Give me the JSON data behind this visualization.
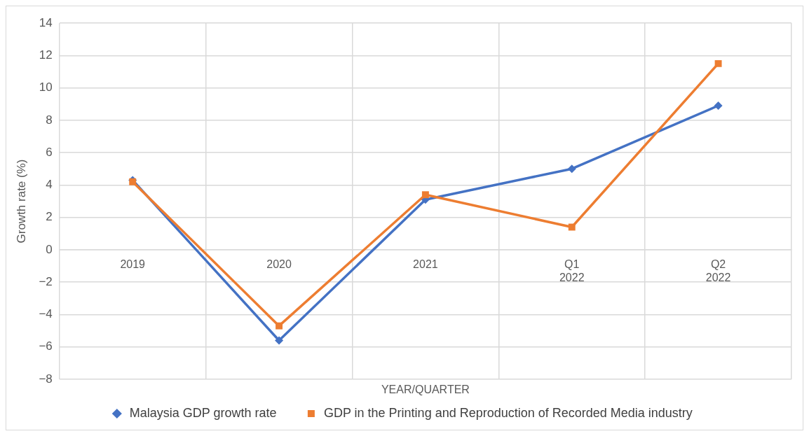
{
  "chart_data": {
    "type": "line",
    "xlabel": "YEAR/QUARTER",
    "ylabel": "Growth rate (%)",
    "categories": [
      "2019",
      "2020",
      "2021",
      "Q1 2022",
      "Q2 2022"
    ],
    "series": [
      {
        "name": "Malaysia GDP growth rate",
        "color": "#4472c4",
        "marker": "diamond",
        "values": [
          4.3,
          -5.6,
          3.1,
          5.0,
          8.9
        ]
      },
      {
        "name": "GDP in the Printing and Reproduction of Recorded Media industry",
        "color": "#ed7d31",
        "marker": "square",
        "values": [
          4.2,
          -4.7,
          3.4,
          1.4,
          11.5
        ]
      }
    ],
    "ylim": [
      -8,
      14
    ],
    "yticks": [
      -8,
      -6,
      -4,
      -2,
      0,
      2,
      4,
      6,
      8,
      10,
      12,
      14
    ],
    "grid": true,
    "legend": "bottom",
    "line_style": "solid"
  }
}
